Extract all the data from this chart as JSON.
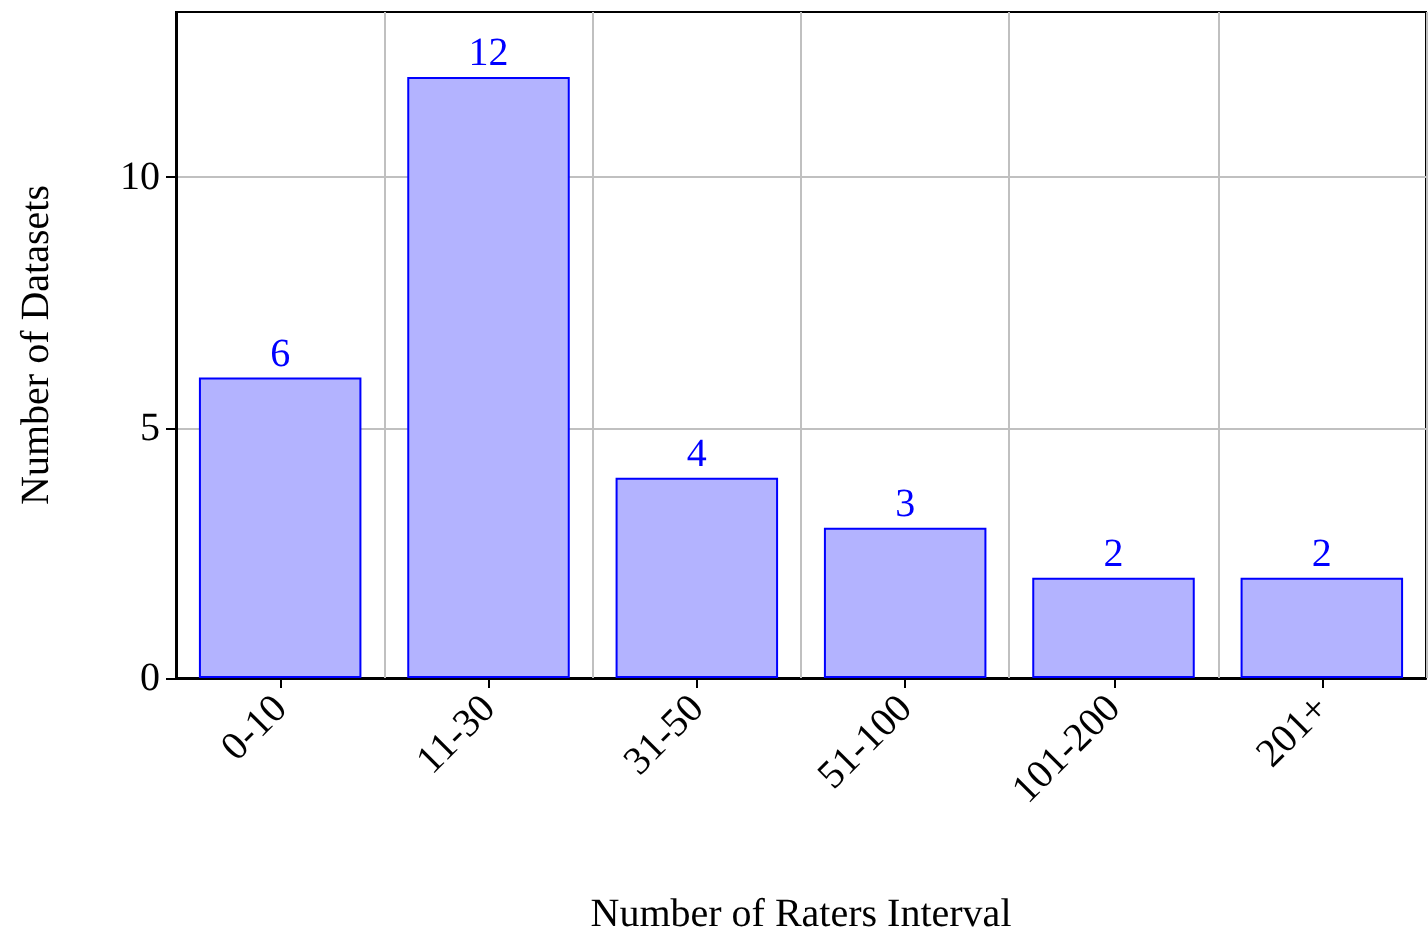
{
  "chart_data": {
    "type": "bar",
    "xlabel": "Number of Raters Interval",
    "ylabel": "Number of Datasets",
    "categories": [
      "0-10",
      "11-30",
      "31-50",
      "51-100",
      "101-200",
      "201+"
    ],
    "series": [
      {
        "color": "#b3b3ff",
        "values": [
          6,
          12,
          4,
          3,
          2,
          2
        ]
      }
    ],
    "ylim": [
      0,
      13.3
    ],
    "yticks": [
      0,
      5,
      10
    ],
    "grid": true,
    "data_labels": true
  }
}
